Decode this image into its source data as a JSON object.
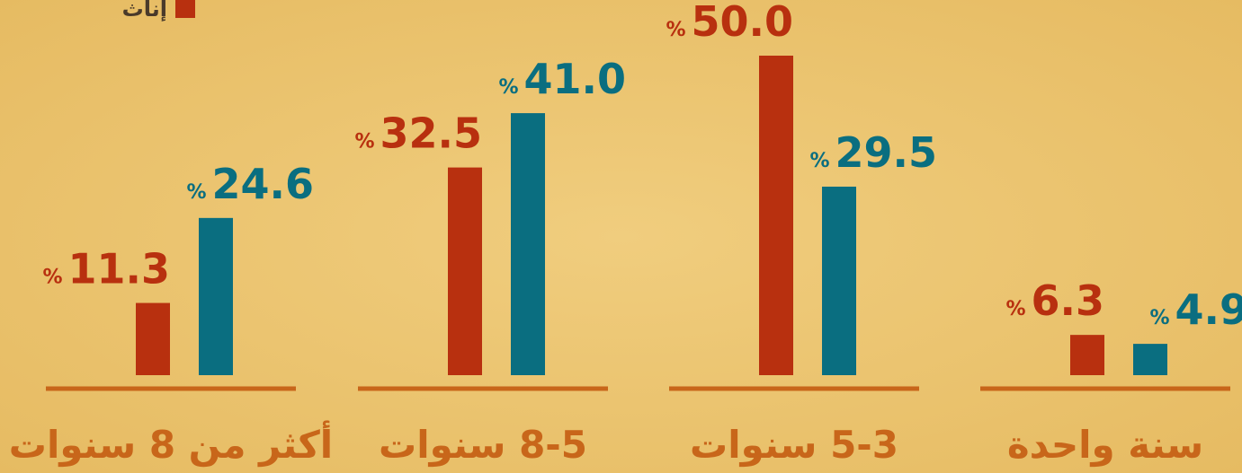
{
  "chart_data": {
    "type": "bar",
    "categories": [
      "أكثر من 8 سنوات",
      "8-5 سنوات",
      "5-3 سنوات",
      "سنة واحدة"
    ],
    "unit": "%",
    "series": [
      {
        "name": "إناث",
        "color": "#b8300f",
        "values": [
          11.3,
          32.5,
          50.0,
          6.3
        ],
        "value_labels": [
          "11.3",
          "32.5",
          "50.0",
          "6.3"
        ]
      },
      {
        "color": "#0a6e80",
        "values": [
          24.6,
          41.0,
          29.5,
          4.9
        ],
        "value_labels": [
          "24.6",
          "41.0",
          "29.5",
          "4.9"
        ]
      }
    ]
  }
}
